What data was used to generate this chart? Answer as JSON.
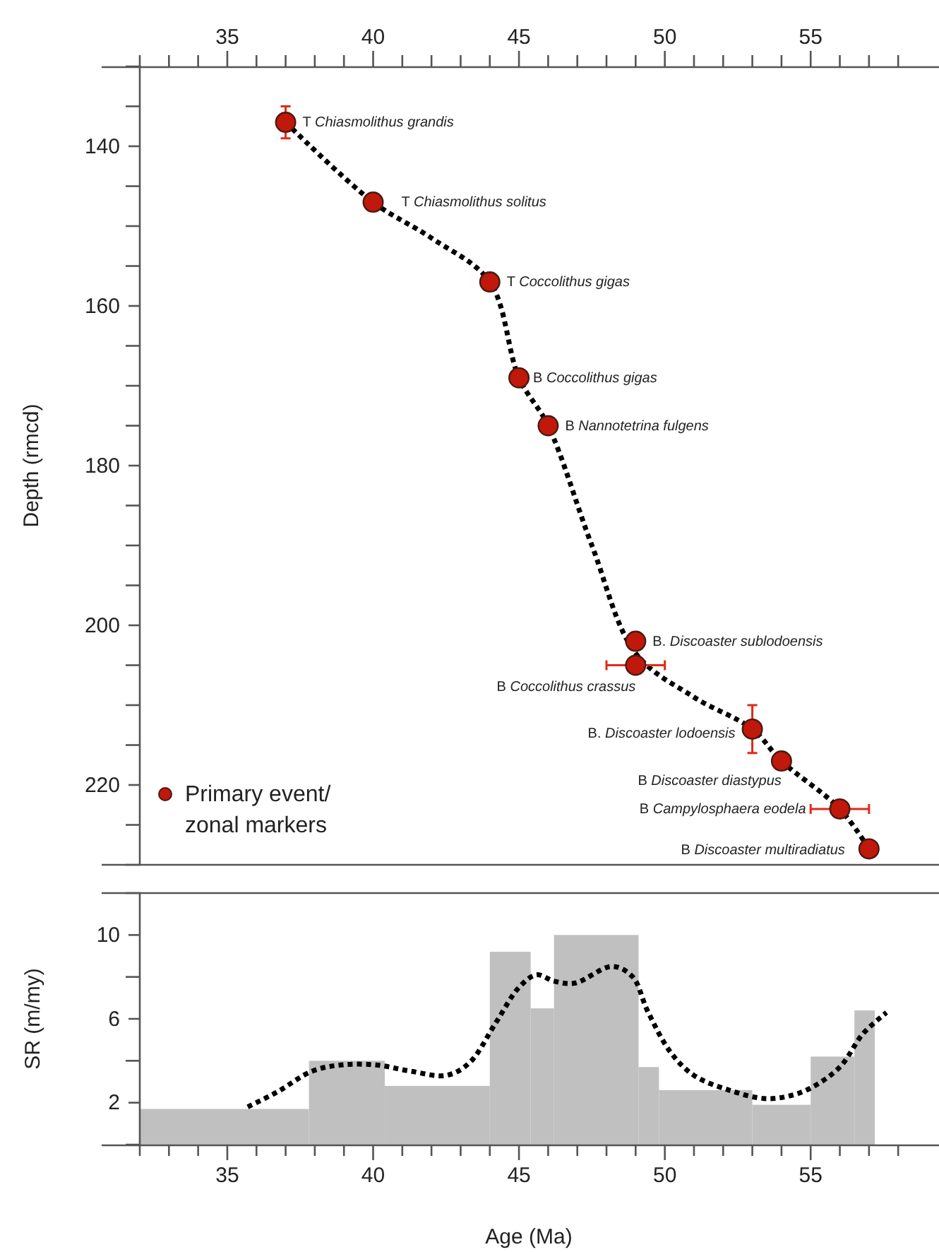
{
  "chart_data": [
    {
      "type": "scatter",
      "ylabel": "Depth (rmcd)",
      "xlim": [
        32,
        59.4
      ],
      "xticks": [
        {
          "value": 32,
          "label": null
        },
        {
          "value": 33,
          "label": null
        },
        {
          "value": 34,
          "label": null
        },
        35,
        {
          "value": 36,
          "label": null
        },
        {
          "value": 37,
          "label": null
        },
        {
          "value": 38,
          "label": null
        },
        {
          "value": 39,
          "label": null
        },
        40,
        {
          "value": 41,
          "label": null
        },
        {
          "value": 42,
          "label": null
        },
        {
          "value": 43,
          "label": null
        },
        {
          "value": 44,
          "label": null
        },
        45,
        {
          "value": 46,
          "label": null
        },
        {
          "value": 47,
          "label": null
        },
        {
          "value": 48,
          "label": null
        },
        {
          "value": 49,
          "label": null
        },
        50,
        {
          "value": 51,
          "label": null
        },
        {
          "value": 52,
          "label": null
        },
        {
          "value": 53,
          "label": null
        },
        {
          "value": 54,
          "label": null
        },
        55,
        {
          "value": 56,
          "label": null
        },
        {
          "value": 57,
          "label": null
        },
        {
          "value": 58,
          "label": null
        }
      ],
      "ylim": [
        230,
        130
      ],
      "yticks": [
        {
          "value": 135,
          "label": null
        },
        140,
        {
          "value": 145,
          "label": null
        },
        {
          "value": 150,
          "label": null
        },
        {
          "value": 155,
          "label": null
        },
        160,
        {
          "value": 165,
          "label": null
        },
        {
          "value": 170,
          "label": null
        },
        {
          "value": 175,
          "label": null
        },
        180,
        {
          "value": 185,
          "label": null
        },
        {
          "value": 190,
          "label": null
        },
        {
          "value": 195,
          "label": null
        },
        200,
        {
          "value": 205,
          "label": null
        },
        {
          "value": 210,
          "label": null
        },
        {
          "value": 215,
          "label": null
        },
        220,
        {
          "value": 225,
          "label": null
        }
      ],
      "legend": "bottom left",
      "grid": false,
      "series": [
        {
          "type": "line",
          "color": "#000000",
          "line_style": "dotted",
          "marker": "none",
          "x": [
            37,
            40,
            42,
            44,
            45,
            46,
            47.5,
            49,
            51,
            53,
            54,
            56,
            57
          ],
          "values": [
            137,
            147,
            151.5,
            157,
            169,
            175,
            190,
            203.5,
            209,
            213,
            217,
            223,
            228
          ]
        },
        {
          "name": "Primary event/zonal markers",
          "color": "#c0180a",
          "marker": "circle",
          "x": [
            37,
            40,
            44,
            45,
            46,
            49,
            49,
            53,
            54,
            56,
            57
          ],
          "values": [
            137,
            147,
            157,
            169,
            175,
            202,
            205,
            213,
            217,
            223,
            228
          ],
          "errors": [
            2,
            null,
            null,
            null,
            null,
            null,
            null,
            3,
            null,
            null,
            null
          ],
          "xerrors": [
            null,
            null,
            null,
            null,
            null,
            null,
            1,
            null,
            null,
            1,
            null
          ]
        }
      ],
      "annotations": [
        {
          "text": "T Chiasmolithus grandis",
          "x": 37,
          "y": 137
        },
        {
          "text": "T Chiasmolithus solitus",
          "x": 40,
          "y": 147
        },
        {
          "text": "T Coccolithus gigas",
          "x": 44,
          "y": 157
        },
        {
          "text": "B Coccolithus gigas",
          "x": 45,
          "y": 169
        },
        {
          "text": "B Nannotetrina fulgens",
          "x": 46,
          "y": 175
        },
        {
          "text": "B. Discoaster sublodoensis",
          "x": 49,
          "y": 202
        },
        {
          "text": "B Coccolithus crassus",
          "x": 49,
          "y": 205
        },
        {
          "text": "B. Discoaster lodoensis",
          "x": 53,
          "y": 213
        },
        {
          "text": "B Discoaster diastypus",
          "x": 54,
          "y": 217
        },
        {
          "text": "B Campylosphaera eodela",
          "x": 56,
          "y": 223
        },
        {
          "text": "B Discoaster multiradiatus",
          "x": 57,
          "y": 228
        }
      ]
    },
    {
      "type": "histogram",
      "xlabel": "Age (Ma)",
      "ylabel": "SR (m/my)",
      "xlim": [
        32,
        59.4
      ],
      "xticks": [
        {
          "value": 32,
          "label": null
        },
        {
          "value": 33,
          "label": null
        },
        {
          "value": 34,
          "label": null
        },
        35,
        {
          "value": 36,
          "label": null
        },
        {
          "value": 37,
          "label": null
        },
        {
          "value": 38,
          "label": null
        },
        {
          "value": 39,
          "label": null
        },
        40,
        {
          "value": 41,
          "label": null
        },
        {
          "value": 42,
          "label": null
        },
        {
          "value": 43,
          "label": null
        },
        {
          "value": 44,
          "label": null
        },
        45,
        {
          "value": 46,
          "label": null
        },
        {
          "value": 47,
          "label": null
        },
        {
          "value": 48,
          "label": null
        },
        {
          "value": 49,
          "label": null
        },
        50,
        {
          "value": 51,
          "label": null
        },
        {
          "value": 52,
          "label": null
        },
        {
          "value": 53,
          "label": null
        },
        {
          "value": 54,
          "label": null
        },
        55,
        {
          "value": 56,
          "label": null
        },
        {
          "value": 57,
          "label": null
        },
        {
          "value": 58,
          "label": null
        }
      ],
      "ylim": [
        0,
        12
      ],
      "yticks": [
        2,
        {
          "value": 4,
          "label": null
        },
        6,
        {
          "value": 8,
          "label": null
        },
        10
      ],
      "grid": false,
      "series": [
        {
          "color": "#c0c0c0",
          "bins": [
            32,
            37.8,
            40.4,
            44,
            45.4,
            46.2,
            49.1,
            49.8,
            53,
            55,
            56.5,
            57.2
          ],
          "values": [
            1.7,
            4.0,
            2.8,
            9.2,
            6.5,
            10.0,
            3.7,
            2.6,
            1.9,
            4.2,
            6.4
          ]
        },
        {
          "type": "line",
          "color": "#000000",
          "line_style": "dotted",
          "marker": "none",
          "x": [
            35.7,
            36.7,
            37.9,
            38.9,
            40.1,
            41.3,
            42.5,
            43.3,
            44.2,
            45.0,
            45.6,
            46.2,
            46.9,
            48.2,
            48.9,
            49.4,
            50.2,
            51.0,
            52.2,
            53.4,
            54.2,
            55.0,
            56.0,
            56.8,
            57.6
          ],
          "values": [
            1.8,
            2.5,
            3.5,
            3.8,
            3.8,
            3.5,
            3.3,
            3.9,
            5.8,
            7.5,
            8.1,
            7.8,
            7.7,
            8.5,
            8.0,
            6.4,
            4.4,
            3.3,
            2.6,
            2.2,
            2.3,
            2.7,
            3.7,
            5.3,
            6.3
          ]
        }
      ]
    }
  ]
}
